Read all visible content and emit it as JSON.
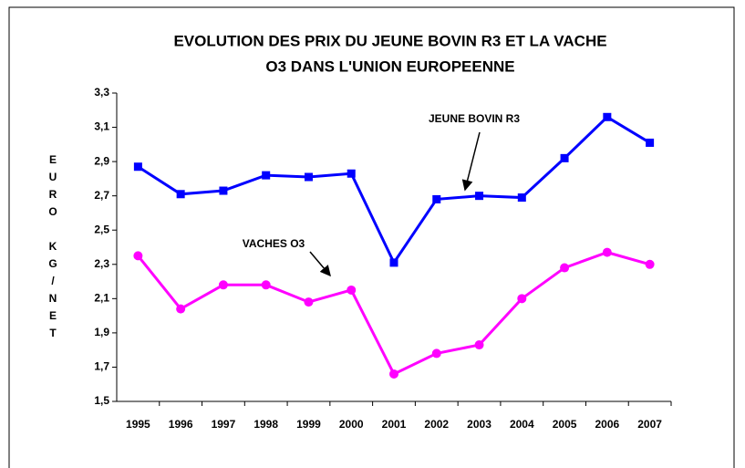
{
  "chart_data": {
    "type": "line",
    "title": "EVOLUTION DES PRIX DU JEUNE BOVIN R3 ET LA VACHE",
    "subtitle": "O3 DANS L'UNION EUROPEENNE",
    "y_label": "EURO KG/NET",
    "categories": [
      "1995",
      "1996",
      "1997",
      "1998",
      "1999",
      "2000",
      "2001",
      "2002",
      "2003",
      "2004",
      "2005",
      "2006",
      "2007"
    ],
    "series": [
      {
        "name": "JEUNE BOVIN R3",
        "color": "#0000ff",
        "marker": "square",
        "values": [
          2.87,
          2.71,
          2.73,
          2.82,
          2.81,
          2.83,
          2.31,
          2.68,
          2.7,
          2.69,
          2.92,
          3.16,
          3.01
        ]
      },
      {
        "name": "VACHES O3",
        "color": "#ff00ff",
        "marker": "circle",
        "values": [
          2.35,
          2.04,
          2.18,
          2.18,
          2.08,
          2.15,
          1.66,
          1.78,
          1.83,
          2.1,
          2.28,
          2.37,
          2.3
        ]
      }
    ],
    "ylim": [
      1.5,
      3.3
    ],
    "yticks": [
      {
        "value": 1.5,
        "label": "1,5"
      },
      {
        "value": 1.7,
        "label": "1,7"
      },
      {
        "value": 1.9,
        "label": "1,9"
      },
      {
        "value": 2.1,
        "label": "2,1"
      },
      {
        "value": 2.3,
        "label": "2,3"
      },
      {
        "value": 2.5,
        "label": "2,5"
      },
      {
        "value": 2.7,
        "label": "2,7"
      },
      {
        "value": 2.9,
        "label": "2,9"
      },
      {
        "value": 3.1,
        "label": "3,1"
      },
      {
        "value": 3.3,
        "label": "3,3"
      }
    ],
    "grid": false
  }
}
